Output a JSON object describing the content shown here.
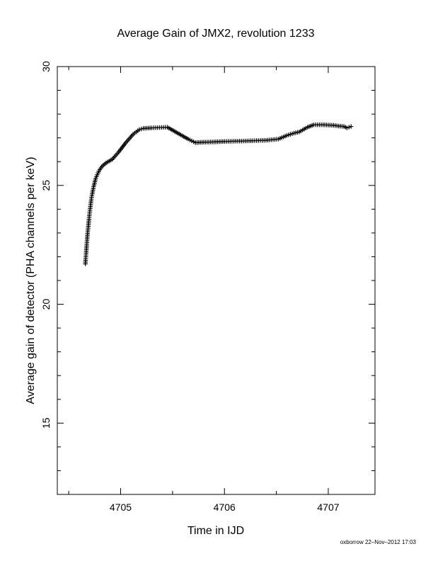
{
  "chart_data": {
    "type": "scatter",
    "marker": "plus",
    "color": "#000000",
    "title": "Average Gain of JMX2, revolution 1233",
    "xlabel": "Time in IJD",
    "ylabel": "Average gain of detector (PHA channels per keV)",
    "xlim": [
      4704.39,
      4707.45
    ],
    "ylim": [
      12.0,
      30.0
    ],
    "x_ticks": [
      4705,
      4706,
      4707
    ],
    "x_tick_labels": [
      "4705",
      "4706",
      "4707"
    ],
    "y_ticks": [
      15,
      20,
      25,
      30
    ],
    "y_tick_labels": [
      "15",
      "20",
      "25",
      "30"
    ],
    "grid": false,
    "legend": "none",
    "series": [
      {
        "x": [
          4704.66,
          4704.68,
          4704.7,
          4704.72,
          4704.74,
          4704.76,
          4704.79,
          4704.82,
          4704.86,
          4704.92,
          4704.98,
          4705.05,
          4705.12,
          4705.18,
          4705.22,
          4705.3,
          4705.45,
          4705.55,
          4705.65,
          4705.72,
          4705.8,
          4705.9,
          4706.0,
          4706.2,
          4706.4,
          4706.52,
          4706.6,
          4706.67,
          4706.72,
          4706.8,
          4706.86,
          4706.95,
          4707.05,
          4707.1,
          4707.15,
          4707.18,
          4707.22
        ],
        "y": [
          21.7,
          22.9,
          23.8,
          24.5,
          24.95,
          25.3,
          25.6,
          25.8,
          25.95,
          26.1,
          26.4,
          26.8,
          27.15,
          27.35,
          27.4,
          27.42,
          27.45,
          27.2,
          26.95,
          26.8,
          26.82,
          26.83,
          26.85,
          26.87,
          26.9,
          26.95,
          27.1,
          27.2,
          27.25,
          27.45,
          27.55,
          27.55,
          27.53,
          27.5,
          27.48,
          27.42,
          27.48
        ]
      }
    ]
  },
  "footer": {
    "credit": "oxborrow 22–Nov–2012 17:03"
  }
}
